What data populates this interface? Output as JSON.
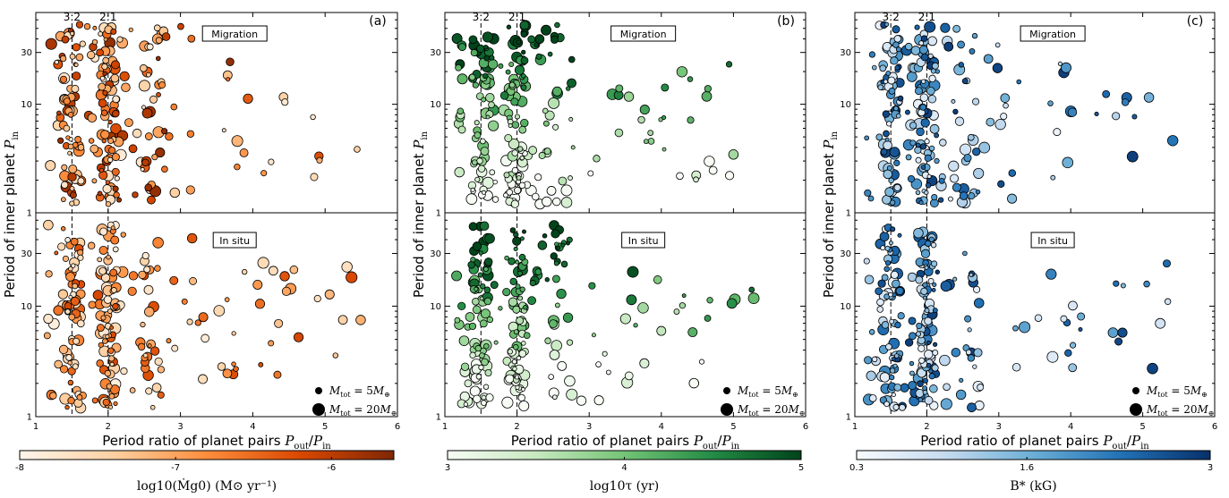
{
  "chart_data": [
    {
      "type": "scatter",
      "panel_label": "(a)",
      "ylabel": "Period of inner planet P_in",
      "ylabel_text": "Period of inner planet ",
      "ylabel_math": "P",
      "ylabel_sub": "in",
      "xlabel_text": "Period ratio of planet pairs ",
      "xlabel_math_num": "P",
      "xlabel_sub_num": "out",
      "xlabel_math_den": "P",
      "xlabel_sub_den": "in",
      "xlim": [
        1,
        6
      ],
      "ylim": [
        1,
        70
      ],
      "yscale": "log",
      "xticks": [
        "1",
        "2",
        "3",
        "4",
        "5",
        "6"
      ],
      "yticks": [
        "1",
        "10",
        "30"
      ],
      "resonances": [
        "3:2",
        "2:1"
      ],
      "resonance_values": [
        1.5,
        2.0
      ],
      "subpanels": [
        "Migration",
        "In situ"
      ],
      "legend": [
        "M_tot = 5M_⊕",
        "M_tot = 20M_⊕"
      ],
      "colorbar": {
        "label": "log10(Ṁg0) (M⊙ yr⁻¹)",
        "ticks": [
          "-8",
          "-7",
          "-6"
        ],
        "range": [
          -8,
          -5.6
        ],
        "colormap": [
          "#fff5eb",
          "#fdd0a2",
          "#fd8d3c",
          "#d94801",
          "#7f2704"
        ]
      },
      "seed": 11
    },
    {
      "type": "scatter",
      "panel_label": "(b)",
      "ylabel": "Period of inner planet P_in",
      "ylabel_text": "Period of inner planet ",
      "ylabel_math": "P",
      "ylabel_sub": "in",
      "xlabel_text": "Period ratio of planet pairs ",
      "xlabel_math_num": "P",
      "xlabel_sub_num": "out",
      "xlabel_math_den": "P",
      "xlabel_sub_den": "in",
      "xlim": [
        1,
        6
      ],
      "ylim": [
        1,
        70
      ],
      "yscale": "log",
      "xticks": [
        "1",
        "2",
        "3",
        "4",
        "5",
        "6"
      ],
      "yticks": [
        "1",
        "10",
        "30"
      ],
      "resonances": [
        "3:2",
        "2:1"
      ],
      "resonance_values": [
        1.5,
        2.0
      ],
      "subpanels": [
        "Migration",
        "In situ"
      ],
      "legend": [
        "M_tot = 5M_⊕",
        "M_tot = 20M_⊕"
      ],
      "colorbar": {
        "label": "log10τ (yr)",
        "ticks": [
          "3",
          "4",
          "5"
        ],
        "range": [
          3,
          5
        ],
        "colormap": [
          "#f7fcf5",
          "#c7e9c0",
          "#74c476",
          "#238b45",
          "#00441b"
        ]
      },
      "seed": 23
    },
    {
      "type": "scatter",
      "panel_label": "(c)",
      "ylabel": "Period of inner planet P_in",
      "ylabel_text": "Period of inner planet ",
      "ylabel_math": "P",
      "ylabel_sub": "in",
      "xlabel_text": "Period ratio of planet pairs ",
      "xlabel_math_num": "P",
      "xlabel_sub_num": "out",
      "xlabel_math_den": "P",
      "xlabel_sub_den": "in",
      "xlim": [
        1,
        6
      ],
      "ylim": [
        1,
        70
      ],
      "yscale": "log",
      "xticks": [
        "1",
        "2",
        "3",
        "4",
        "5",
        "6"
      ],
      "yticks": [
        "1",
        "10",
        "30"
      ],
      "resonances": [
        "3:2",
        "2:1"
      ],
      "resonance_values": [
        1.5,
        2.0
      ],
      "subpanels": [
        "Migration",
        "In situ"
      ],
      "legend": [
        "M_tot = 5M_⊕",
        "M_tot = 20M_⊕"
      ],
      "colorbar": {
        "label": "B* (kG)",
        "ticks": [
          "0.3",
          "1.6",
          "3"
        ],
        "range": [
          0.3,
          3
        ],
        "colormap": [
          "#f7fbff",
          "#c6dbef",
          "#6baed6",
          "#2171b5",
          "#08306b"
        ]
      },
      "seed": 37
    }
  ]
}
